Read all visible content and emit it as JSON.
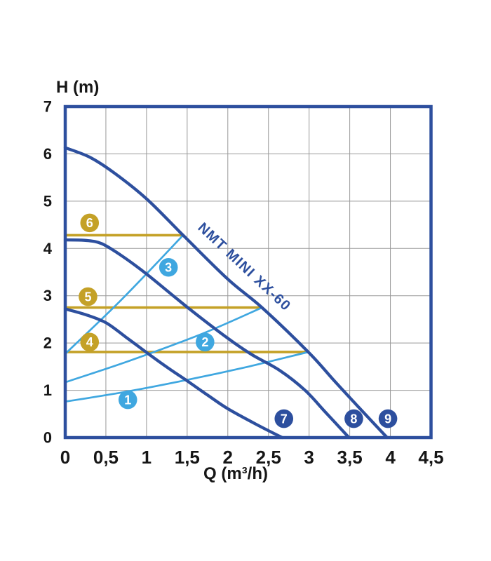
{
  "page": {
    "background": "#ffffff"
  },
  "chart_data": {
    "type": "line",
    "title": "NMT MINI XX-60",
    "xlabel": "Q (m³/h)",
    "ylabel": "H (m)",
    "xlim": [
      0,
      4.5
    ],
    "ylim": [
      0,
      7
    ],
    "grid": {
      "x_step": 0.5,
      "y_step": 1,
      "on": true
    },
    "x_ticks": [
      {
        "v": 0,
        "label": "0"
      },
      {
        "v": 0.5,
        "label": "0,5"
      },
      {
        "v": 1,
        "label": "1"
      },
      {
        "v": 1.5,
        "label": "1,5"
      },
      {
        "v": 2,
        "label": "2"
      },
      {
        "v": 2.5,
        "label": "2,5"
      },
      {
        "v": 3,
        "label": "3"
      },
      {
        "v": 3.5,
        "label": "3,5"
      },
      {
        "v": 4,
        "label": "4"
      },
      {
        "v": 4.5,
        "label": "4,5"
      }
    ],
    "y_ticks": [
      {
        "v": 0,
        "label": "0"
      },
      {
        "v": 1,
        "label": "1"
      },
      {
        "v": 2,
        "label": "2"
      },
      {
        "v": 3,
        "label": "3"
      },
      {
        "v": 4,
        "label": "4"
      },
      {
        "v": 5,
        "label": "5"
      },
      {
        "v": 6,
        "label": "6"
      },
      {
        "v": 7,
        "label": "7"
      }
    ],
    "colors": {
      "dark_blue": "#2d4f9e",
      "light_blue": "#3fa7e0",
      "gold": "#c4a127",
      "grid": "#999999",
      "text": "#161616",
      "background": "#ffffff"
    },
    "series": [
      {
        "id": "constant-pressure-6",
        "kind": "cp",
        "color": "gold",
        "points": [
          [
            0,
            4.28
          ],
          [
            1.45,
            4.28
          ]
        ],
        "badge": {
          "label": "6",
          "q": 0.3,
          "h": 4.54
        }
      },
      {
        "id": "constant-pressure-5",
        "kind": "cp",
        "color": "gold",
        "points": [
          [
            0,
            2.75
          ],
          [
            2.42,
            2.75
          ]
        ],
        "badge": {
          "label": "5",
          "q": 0.28,
          "h": 2.98
        }
      },
      {
        "id": "constant-pressure-4",
        "kind": "cp",
        "color": "gold",
        "points": [
          [
            0,
            1.81
          ],
          [
            2.99,
            1.81
          ]
        ],
        "badge": {
          "label": "4",
          "q": 0.3,
          "h": 2.02
        }
      },
      {
        "id": "proportional-pressure-3",
        "kind": "pp",
        "color": "light_blue",
        "points": [
          [
            0,
            1.77
          ],
          [
            0.7,
            2.93
          ],
          [
            1.45,
            4.28
          ]
        ],
        "badge": {
          "label": "3",
          "q": 1.27,
          "h": 3.6
        }
      },
      {
        "id": "proportional-pressure-2",
        "kind": "pp",
        "color": "light_blue",
        "points": [
          [
            0,
            1.17
          ],
          [
            0.8,
            1.63
          ],
          [
            1.69,
            2.2
          ],
          [
            2.42,
            2.75
          ]
        ],
        "badge": {
          "label": "2",
          "q": 1.72,
          "h": 2.02
        }
      },
      {
        "id": "proportional-pressure-1",
        "kind": "pp",
        "color": "light_blue",
        "points": [
          [
            0,
            0.76
          ],
          [
            0.75,
            0.97
          ],
          [
            1.5,
            1.22
          ],
          [
            2.25,
            1.5
          ],
          [
            2.99,
            1.81
          ]
        ],
        "badge": {
          "label": "1",
          "q": 0.77,
          "h": 0.8
        }
      },
      {
        "id": "speed-curve-9",
        "kind": "speed",
        "color": "dark_blue",
        "curve_label": "NMT MINI XX-60",
        "points": [
          [
            0,
            6.13
          ],
          [
            0.3,
            5.93
          ],
          [
            0.6,
            5.6
          ],
          [
            1,
            5.05
          ],
          [
            1.45,
            4.28
          ],
          [
            2,
            3.35
          ],
          [
            2.42,
            2.75
          ],
          [
            2.99,
            1.81
          ],
          [
            3.3,
            1.22
          ],
          [
            3.6,
            0.66
          ],
          [
            3.96,
            0
          ]
        ],
        "badge": {
          "label": "9",
          "q": 3.97,
          "h": 0.4
        }
      },
      {
        "id": "speed-curve-8",
        "kind": "speed",
        "color": "dark_blue",
        "points": [
          [
            0,
            4.18
          ],
          [
            0.25,
            4.17
          ],
          [
            0.45,
            4.1
          ],
          [
            0.7,
            3.84
          ],
          [
            1,
            3.46
          ],
          [
            1.5,
            2.76
          ],
          [
            2,
            2.1
          ],
          [
            2.3,
            1.75
          ],
          [
            2.64,
            1.42
          ],
          [
            2.95,
            1.0
          ],
          [
            3.2,
            0.54
          ],
          [
            3.49,
            0
          ]
        ],
        "badge": {
          "label": "8",
          "q": 3.55,
          "h": 0.4
        }
      },
      {
        "id": "speed-curve-7",
        "kind": "speed",
        "color": "dark_blue",
        "points": [
          [
            0,
            2.72
          ],
          [
            0.25,
            2.6
          ],
          [
            0.5,
            2.43
          ],
          [
            0.75,
            2.12
          ],
          [
            1,
            1.8
          ],
          [
            1.25,
            1.49
          ],
          [
            1.5,
            1.2
          ],
          [
            1.75,
            0.9
          ],
          [
            2,
            0.61
          ],
          [
            2.35,
            0.28
          ],
          [
            2.67,
            0
          ]
        ],
        "badge": {
          "label": "7",
          "q": 2.69,
          "h": 0.4
        }
      }
    ]
  }
}
